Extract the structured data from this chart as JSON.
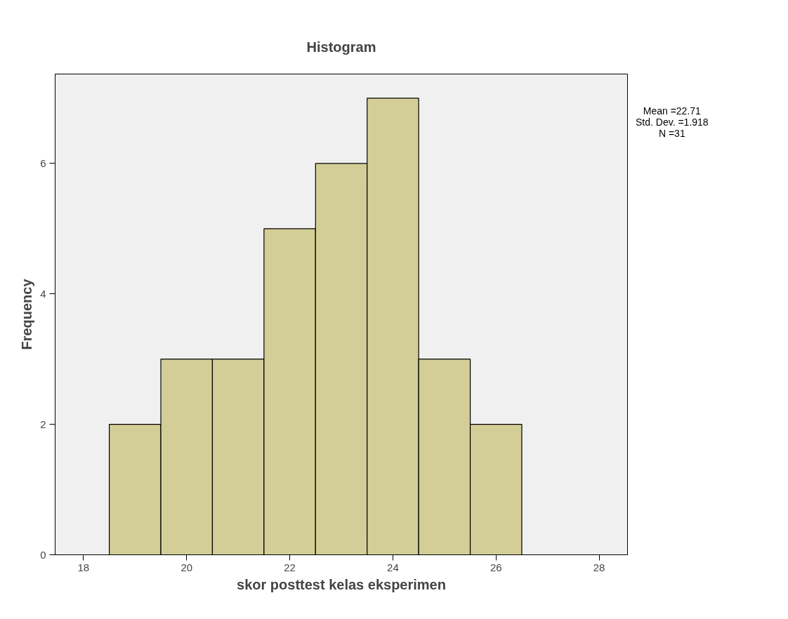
{
  "chart_data": {
    "type": "histogram",
    "title": "Histogram",
    "xlabel": "skor posttest kelas eksperimen",
    "ylabel": "Frequency",
    "bins": [
      18.5,
      19.5,
      20.5,
      21.5,
      22.5,
      23.5,
      24.5,
      25.5,
      26.5
    ],
    "values": [
      2,
      3,
      3,
      5,
      6,
      7,
      3,
      2
    ],
    "color": "#d3ce97",
    "xlim": [
      17.45,
      28.55
    ],
    "xticks": [
      18,
      20,
      22,
      24,
      26,
      28
    ],
    "ylim": [
      0,
      7.37
    ],
    "yticks": [
      0,
      2,
      4,
      6
    ],
    "grid": false,
    "annotations": [
      "Mean =22.71",
      "Std. Dev. =1.918",
      "N =31"
    ]
  }
}
